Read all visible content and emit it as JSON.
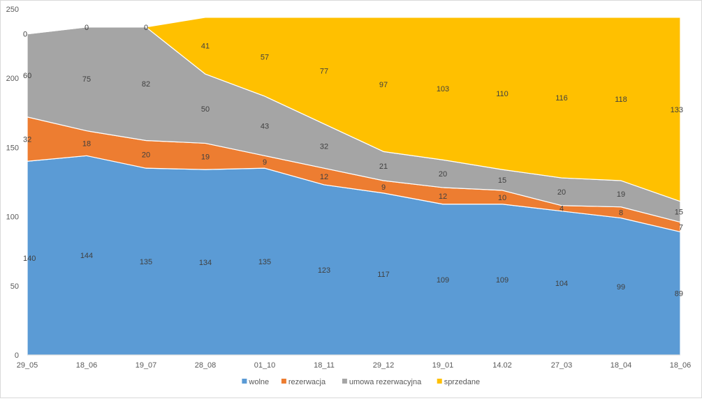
{
  "chart_data": {
    "type": "area",
    "stacked": true,
    "categories": [
      "29_05",
      "18_06",
      "19_07",
      "28_08",
      "01_10",
      "18_11",
      "29_12",
      "19_01",
      "14.02",
      "27_03",
      "18_04",
      "18_06"
    ],
    "series": [
      {
        "name": "wolne",
        "color": "#5b9bd5",
        "values": [
          140,
          144,
          135,
          134,
          135,
          123,
          117,
          109,
          109,
          104,
          99,
          89
        ]
      },
      {
        "name": "rezerwacja",
        "color": "#ed7d31",
        "values": [
          32,
          18,
          20,
          19,
          9,
          12,
          9,
          12,
          10,
          4,
          8,
          7
        ]
      },
      {
        "name": "umowa rezerwacyjna",
        "color": "#a5a5a5",
        "values": [
          60,
          75,
          82,
          50,
          43,
          32,
          21,
          20,
          15,
          20,
          19,
          15
        ]
      },
      {
        "name": "sprzedane",
        "color": "#ffc000",
        "values": [
          0,
          0,
          0,
          41,
          57,
          77,
          97,
          103,
          110,
          116,
          118,
          133
        ]
      }
    ],
    "yticks": [
      "0",
      "50",
      "100",
      "150",
      "200",
      "250"
    ],
    "ylim": [
      0,
      250
    ],
    "legend_position": "bottom"
  }
}
